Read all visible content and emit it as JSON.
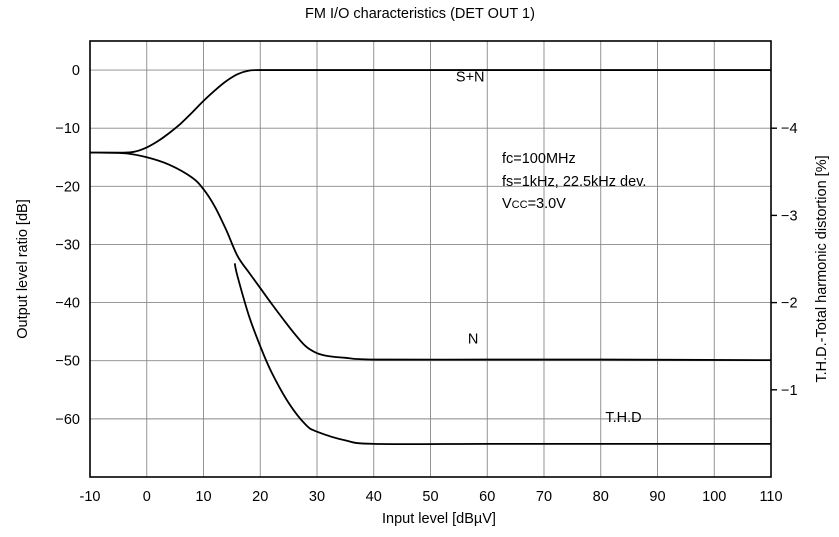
{
  "chart_data": {
    "type": "line",
    "title": "FM I/O characteristics (DET OUT 1)",
    "xlabel": "Input level [dBµV]",
    "ylabel": "Output level ratio [dB]",
    "y2label": "T.H.D.-Total harmonic distortion [%]",
    "xlim": [
      -10,
      110
    ],
    "ylim": [
      -70,
      5
    ],
    "y2lim": [
      0,
      5
    ],
    "grid": true,
    "x_ticks": [
      "-10",
      "0",
      "10",
      "20",
      "30",
      "40",
      "50",
      "60",
      "70",
      "80",
      "90",
      "100",
      "110"
    ],
    "x_tick_values": [
      -10,
      0,
      10,
      20,
      30,
      40,
      50,
      60,
      70,
      80,
      90,
      100,
      110
    ],
    "y_ticks": [
      "0",
      "−10",
      "−20",
      "−30",
      "−40",
      "−50",
      "−60"
    ],
    "y_tick_values": [
      0,
      -10,
      -20,
      -30,
      -40,
      -50,
      -60
    ],
    "y2_ticks": [
      "−4",
      "−3",
      "−2",
      "−1"
    ],
    "y2_tick_values": [
      4,
      3,
      2,
      1
    ],
    "series": [
      {
        "name": "S+N",
        "axis": "left",
        "x": [
          -10,
          -4,
          -2,
          0,
          2,
          4,
          6,
          8,
          10,
          12,
          14,
          16,
          18,
          20,
          30,
          40,
          60,
          80,
          110
        ],
        "y": [
          -14.2,
          -14.2,
          -14.0,
          -13.3,
          -12.2,
          -10.8,
          -9.2,
          -7.3,
          -5.3,
          -3.5,
          -1.9,
          -0.7,
          -0.1,
          0,
          0,
          0,
          0,
          0,
          0
        ]
      },
      {
        "name": "N",
        "axis": "left",
        "x": [
          -10,
          -4,
          0,
          4,
          8,
          10,
          12,
          14,
          16,
          18,
          20,
          22,
          24,
          26,
          28,
          30,
          32,
          35,
          40,
          60,
          80,
          110
        ],
        "y": [
          -14.2,
          -14.3,
          -15.0,
          -16.3,
          -18.5,
          -20.5,
          -23.5,
          -27.5,
          -32.0,
          -34.8,
          -37.5,
          -40.2,
          -42.8,
          -45.3,
          -47.5,
          -48.7,
          -49.2,
          -49.5,
          -49.8,
          -49.8,
          -49.8,
          -49.9
        ]
      },
      {
        "name": "T.H.D",
        "axis": "right",
        "x": [
          15.5,
          16,
          18,
          20,
          22,
          25,
          28,
          30,
          35,
          40,
          60,
          80,
          110
        ],
        "y": [
          2.45,
          2.3,
          1.85,
          1.5,
          1.2,
          0.85,
          0.6,
          0.52,
          0.42,
          0.38,
          0.38,
          0.38,
          0.38
        ]
      }
    ],
    "series_labels": [
      {
        "text": "S+N",
        "x": 57,
        "y": -2
      },
      {
        "text": "N",
        "x": 57.5,
        "y": -47
      },
      {
        "text": "T.H.D",
        "x": 84,
        "y": 0.63
      }
    ],
    "conditions": [
      "fc=100MHz",
      "fs=1kHz, 22.5kHz dev.",
      "Vcc=3.0V"
    ]
  }
}
